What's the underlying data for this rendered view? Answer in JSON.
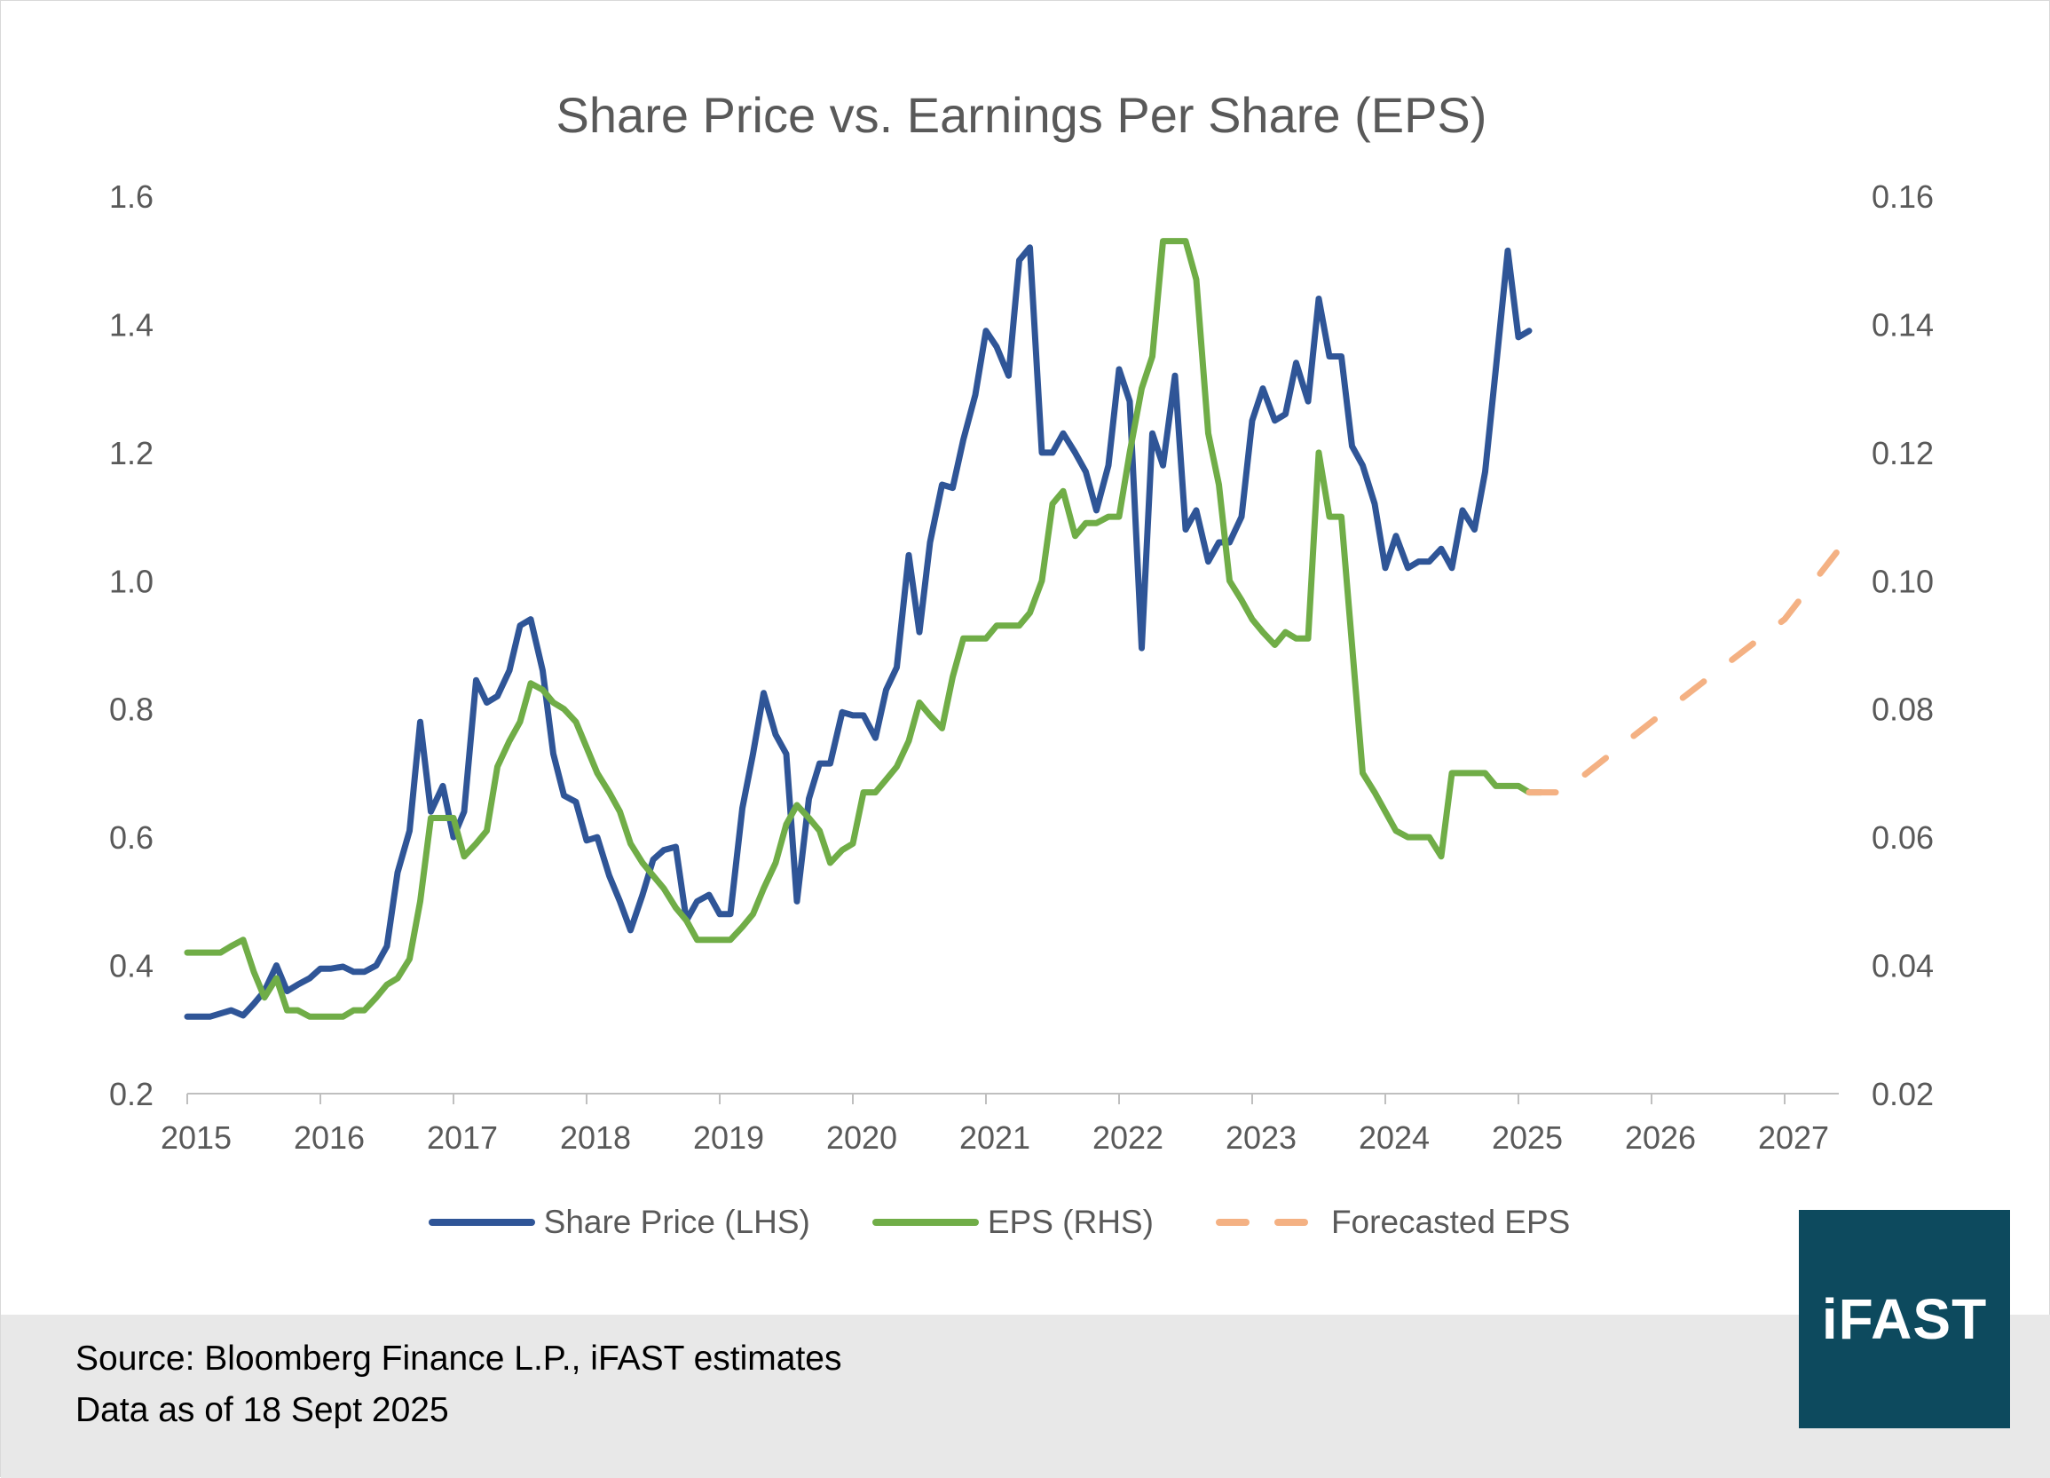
{
  "colors": {
    "share_price": "#2f5597",
    "eps": "#70ad47",
    "forecast": "#f4b183",
    "axis_text": "#595959",
    "logo_bg": "#0d4a5e"
  },
  "footer": {
    "source": "Source: Bloomberg Finance L.P., iFAST estimates",
    "date": "Data as of 18 Sept 2025"
  },
  "logo": {
    "text": "iFAST"
  },
  "chart_data": {
    "type": "line",
    "title": "Share Price vs. Earnings Per Share (EPS)",
    "xlabel": "",
    "ylabel": "",
    "x_ticks": [
      "2015",
      "2016",
      "2017",
      "2018",
      "2019",
      "2020",
      "2021",
      "2022",
      "2023",
      "2024",
      "2025",
      "2026",
      "2027"
    ],
    "xlim": [
      2015,
      2027.43
    ],
    "y_left": {
      "ticks": [
        "0.2",
        "0.4",
        "0.6",
        "0.8",
        "1.0",
        "1.2",
        "1.4",
        "1.6"
      ],
      "lim": [
        0.2,
        1.6
      ]
    },
    "y_right": {
      "ticks": [
        "0.02",
        "0.04",
        "0.06",
        "0.08",
        "0.10",
        "0.12",
        "0.14",
        "0.16"
      ],
      "lim": [
        0.02,
        0.16
      ]
    },
    "grid": false,
    "legend": "bottom",
    "series": [
      {
        "name": "Share Price (LHS)",
        "axis": "left",
        "style": "solid",
        "points": [
          [
            2015.0,
            0.32
          ],
          [
            2015.17,
            0.32
          ],
          [
            2015.25,
            0.325
          ],
          [
            2015.33,
            0.33
          ],
          [
            2015.42,
            0.322
          ],
          [
            2015.5,
            0.34
          ],
          [
            2015.58,
            0.36
          ],
          [
            2015.67,
            0.4
          ],
          [
            2015.75,
            0.36
          ],
          [
            2015.83,
            0.37
          ],
          [
            2015.92,
            0.38
          ],
          [
            2016.0,
            0.395
          ],
          [
            2016.08,
            0.395
          ],
          [
            2016.17,
            0.398
          ],
          [
            2016.25,
            0.39
          ],
          [
            2016.33,
            0.39
          ],
          [
            2016.42,
            0.4
          ],
          [
            2016.5,
            0.43
          ],
          [
            2016.58,
            0.545
          ],
          [
            2016.67,
            0.61
          ],
          [
            2016.75,
            0.78
          ],
          [
            2016.83,
            0.64
          ],
          [
            2016.92,
            0.68
          ],
          [
            2017.0,
            0.6
          ],
          [
            2017.08,
            0.64
          ],
          [
            2017.17,
            0.845
          ],
          [
            2017.25,
            0.81
          ],
          [
            2017.33,
            0.82
          ],
          [
            2017.42,
            0.86
          ],
          [
            2017.5,
            0.93
          ],
          [
            2017.58,
            0.94
          ],
          [
            2017.67,
            0.86
          ],
          [
            2017.75,
            0.73
          ],
          [
            2017.83,
            0.665
          ],
          [
            2017.92,
            0.655
          ],
          [
            2018.0,
            0.595
          ],
          [
            2018.08,
            0.6
          ],
          [
            2018.17,
            0.54
          ],
          [
            2018.25,
            0.5
          ],
          [
            2018.33,
            0.455
          ],
          [
            2018.42,
            0.51
          ],
          [
            2018.5,
            0.565
          ],
          [
            2018.58,
            0.58
          ],
          [
            2018.67,
            0.585
          ],
          [
            2018.75,
            0.47
          ],
          [
            2018.83,
            0.5
          ],
          [
            2018.92,
            0.51
          ],
          [
            2019.0,
            0.48
          ],
          [
            2019.08,
            0.48
          ],
          [
            2019.17,
            0.645
          ],
          [
            2019.25,
            0.73
          ],
          [
            2019.33,
            0.825
          ],
          [
            2019.42,
            0.76
          ],
          [
            2019.5,
            0.73
          ],
          [
            2019.58,
            0.5
          ],
          [
            2019.67,
            0.66
          ],
          [
            2019.75,
            0.715
          ],
          [
            2019.83,
            0.715
          ],
          [
            2019.92,
            0.795
          ],
          [
            2020.0,
            0.79
          ],
          [
            2020.08,
            0.79
          ],
          [
            2020.17,
            0.755
          ],
          [
            2020.25,
            0.83
          ],
          [
            2020.33,
            0.865
          ],
          [
            2020.42,
            1.04
          ],
          [
            2020.5,
            0.92
          ],
          [
            2020.58,
            1.06
          ],
          [
            2020.67,
            1.15
          ],
          [
            2020.75,
            1.145
          ],
          [
            2020.83,
            1.22
          ],
          [
            2020.92,
            1.29
          ],
          [
            2021.0,
            1.39
          ],
          [
            2021.08,
            1.365
          ],
          [
            2021.17,
            1.32
          ],
          [
            2021.25,
            1.5
          ],
          [
            2021.33,
            1.52
          ],
          [
            2021.42,
            1.2
          ],
          [
            2021.5,
            1.2
          ],
          [
            2021.58,
            1.23
          ],
          [
            2021.67,
            1.2
          ],
          [
            2021.75,
            1.17
          ],
          [
            2021.83,
            1.11
          ],
          [
            2021.92,
            1.18
          ],
          [
            2022.0,
            1.33
          ],
          [
            2022.08,
            1.28
          ],
          [
            2022.17,
            0.895
          ],
          [
            2022.25,
            1.23
          ],
          [
            2022.33,
            1.18
          ],
          [
            2022.42,
            1.32
          ],
          [
            2022.5,
            1.08
          ],
          [
            2022.58,
            1.11
          ],
          [
            2022.67,
            1.03
          ],
          [
            2022.75,
            1.06
          ],
          [
            2022.83,
            1.06
          ],
          [
            2022.92,
            1.1
          ],
          [
            2023.0,
            1.25
          ],
          [
            2023.08,
            1.3
          ],
          [
            2023.17,
            1.25
          ],
          [
            2023.25,
            1.26
          ],
          [
            2023.33,
            1.34
          ],
          [
            2023.42,
            1.28
          ],
          [
            2023.5,
            1.44
          ],
          [
            2023.58,
            1.35
          ],
          [
            2023.67,
            1.35
          ],
          [
            2023.75,
            1.21
          ],
          [
            2023.83,
            1.18
          ],
          [
            2023.92,
            1.12
          ],
          [
            2024.0,
            1.02
          ],
          [
            2024.08,
            1.07
          ],
          [
            2024.17,
            1.02
          ],
          [
            2024.25,
            1.03
          ],
          [
            2024.33,
            1.03
          ],
          [
            2024.42,
            1.05
          ],
          [
            2024.5,
            1.02
          ],
          [
            2024.58,
            1.11
          ],
          [
            2024.67,
            1.08
          ],
          [
            2024.75,
            1.17
          ],
          [
            2024.83,
            1.33
          ],
          [
            2024.92,
            1.515
          ],
          [
            2025.0,
            1.38
          ],
          [
            2025.08,
            1.39
          ]
        ]
      },
      {
        "name": "EPS (RHS)",
        "axis": "right",
        "style": "solid",
        "points": [
          [
            2015.0,
            0.042
          ],
          [
            2015.25,
            0.042
          ],
          [
            2015.33,
            0.043
          ],
          [
            2015.42,
            0.044
          ],
          [
            2015.5,
            0.039
          ],
          [
            2015.58,
            0.035
          ],
          [
            2015.67,
            0.038
          ],
          [
            2015.75,
            0.033
          ],
          [
            2015.83,
            0.033
          ],
          [
            2015.92,
            0.032
          ],
          [
            2016.0,
            0.032
          ],
          [
            2016.08,
            0.032
          ],
          [
            2016.17,
            0.032
          ],
          [
            2016.25,
            0.033
          ],
          [
            2016.33,
            0.033
          ],
          [
            2016.42,
            0.035
          ],
          [
            2016.5,
            0.037
          ],
          [
            2016.58,
            0.038
          ],
          [
            2016.67,
            0.041
          ],
          [
            2016.75,
            0.05
          ],
          [
            2016.83,
            0.063
          ],
          [
            2016.92,
            0.063
          ],
          [
            2017.0,
            0.063
          ],
          [
            2017.08,
            0.057
          ],
          [
            2017.17,
            0.059
          ],
          [
            2017.25,
            0.061
          ],
          [
            2017.33,
            0.071
          ],
          [
            2017.42,
            0.075
          ],
          [
            2017.5,
            0.078
          ],
          [
            2017.58,
            0.084
          ],
          [
            2017.67,
            0.083
          ],
          [
            2017.75,
            0.081
          ],
          [
            2017.83,
            0.08
          ],
          [
            2017.92,
            0.078
          ],
          [
            2018.0,
            0.074
          ],
          [
            2018.08,
            0.07
          ],
          [
            2018.17,
            0.067
          ],
          [
            2018.25,
            0.064
          ],
          [
            2018.33,
            0.059
          ],
          [
            2018.42,
            0.056
          ],
          [
            2018.5,
            0.054
          ],
          [
            2018.58,
            0.052
          ],
          [
            2018.67,
            0.049
          ],
          [
            2018.75,
            0.047
          ],
          [
            2018.83,
            0.044
          ],
          [
            2018.92,
            0.044
          ],
          [
            2019.0,
            0.044
          ],
          [
            2019.08,
            0.044
          ],
          [
            2019.17,
            0.046
          ],
          [
            2019.25,
            0.048
          ],
          [
            2019.33,
            0.052
          ],
          [
            2019.42,
            0.056
          ],
          [
            2019.5,
            0.062
          ],
          [
            2019.58,
            0.065
          ],
          [
            2019.67,
            0.063
          ],
          [
            2019.75,
            0.061
          ],
          [
            2019.83,
            0.056
          ],
          [
            2019.92,
            0.058
          ],
          [
            2020.0,
            0.059
          ],
          [
            2020.08,
            0.067
          ],
          [
            2020.17,
            0.067
          ],
          [
            2020.25,
            0.069
          ],
          [
            2020.33,
            0.071
          ],
          [
            2020.42,
            0.075
          ],
          [
            2020.5,
            0.081
          ],
          [
            2020.58,
            0.079
          ],
          [
            2020.67,
            0.077
          ],
          [
            2020.75,
            0.085
          ],
          [
            2020.83,
            0.091
          ],
          [
            2020.92,
            0.091
          ],
          [
            2021.0,
            0.091
          ],
          [
            2021.08,
            0.093
          ],
          [
            2021.17,
            0.093
          ],
          [
            2021.25,
            0.093
          ],
          [
            2021.33,
            0.095
          ],
          [
            2021.42,
            0.1
          ],
          [
            2021.5,
            0.112
          ],
          [
            2021.58,
            0.114
          ],
          [
            2021.67,
            0.107
          ],
          [
            2021.75,
            0.109
          ],
          [
            2021.83,
            0.109
          ],
          [
            2021.92,
            0.11
          ],
          [
            2022.0,
            0.11
          ],
          [
            2022.08,
            0.12
          ],
          [
            2022.17,
            0.13
          ],
          [
            2022.25,
            0.135
          ],
          [
            2022.33,
            0.153
          ],
          [
            2022.42,
            0.153
          ],
          [
            2022.5,
            0.153
          ],
          [
            2022.58,
            0.147
          ],
          [
            2022.67,
            0.123
          ],
          [
            2022.75,
            0.115
          ],
          [
            2022.83,
            0.1
          ],
          [
            2022.92,
            0.097
          ],
          [
            2023.0,
            0.094
          ],
          [
            2023.08,
            0.092
          ],
          [
            2023.17,
            0.09
          ],
          [
            2023.25,
            0.092
          ],
          [
            2023.33,
            0.091
          ],
          [
            2023.42,
            0.091
          ],
          [
            2023.5,
            0.12
          ],
          [
            2023.58,
            0.11
          ],
          [
            2023.67,
            0.11
          ],
          [
            2023.75,
            0.09
          ],
          [
            2023.83,
            0.07
          ],
          [
            2023.92,
            0.067
          ],
          [
            2024.0,
            0.064
          ],
          [
            2024.08,
            0.061
          ],
          [
            2024.17,
            0.06
          ],
          [
            2024.25,
            0.06
          ],
          [
            2024.33,
            0.06
          ],
          [
            2024.42,
            0.057
          ],
          [
            2024.5,
            0.07
          ],
          [
            2024.58,
            0.07
          ],
          [
            2024.67,
            0.07
          ],
          [
            2024.75,
            0.07
          ],
          [
            2024.83,
            0.068
          ],
          [
            2024.92,
            0.068
          ],
          [
            2025.0,
            0.068
          ],
          [
            2025.08,
            0.067
          ],
          [
            2025.17,
            0.067
          ]
        ]
      },
      {
        "name": "Forecasted EPS",
        "axis": "right",
        "style": "dashed",
        "points": [
          [
            2025.08,
            0.067
          ],
          [
            2025.33,
            0.067
          ],
          [
            2026.0,
            0.078
          ],
          [
            2027.0,
            0.094
          ],
          [
            2027.43,
            0.1055
          ]
        ]
      }
    ]
  }
}
